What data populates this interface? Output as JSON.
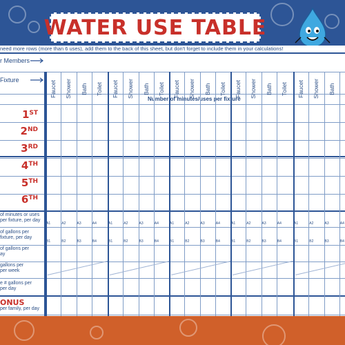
{
  "header": {
    "title": "WATER USE TABLE",
    "note": "need more rows (more than 6 uses), add them to the back of this sheet, but don't forget to include them in your calculations!"
  },
  "labels": {
    "members": "r Members",
    "fixture": "Fixture",
    "minutes_header": "Number of minutes/uses per fixture",
    "fixtures": [
      "Faucet",
      "Shower",
      "Bath",
      "Toilet"
    ],
    "ordinals": [
      {
        "n": "1",
        "s": "ST"
      },
      {
        "n": "2",
        "s": "ND"
      },
      {
        "n": "3",
        "s": "RD"
      },
      {
        "n": "4",
        "s": "TH"
      },
      {
        "n": "5",
        "s": "TH"
      },
      {
        "n": "6",
        "s": "TH"
      }
    ],
    "summary": [
      [
        "of minutes or uses",
        "per fixture, per day"
      ],
      [
        "of gallons per",
        "fixture, per day"
      ],
      [
        "of gallons per",
        "ay"
      ],
      [
        "gallons per",
        "per week"
      ],
      [
        "e # gallons per",
        "per day"
      ]
    ],
    "bonus": "ONUS",
    "bonus_sub": "per family, per day",
    "row_codes_a": [
      "A1",
      "A2",
      "A3",
      "A4"
    ],
    "row_codes_b": [
      "B1",
      "B2",
      "B3",
      "B4"
    ]
  },
  "colors": {
    "blue": "#2d5596",
    "red": "#c8302a",
    "orange": "#d0602a"
  }
}
